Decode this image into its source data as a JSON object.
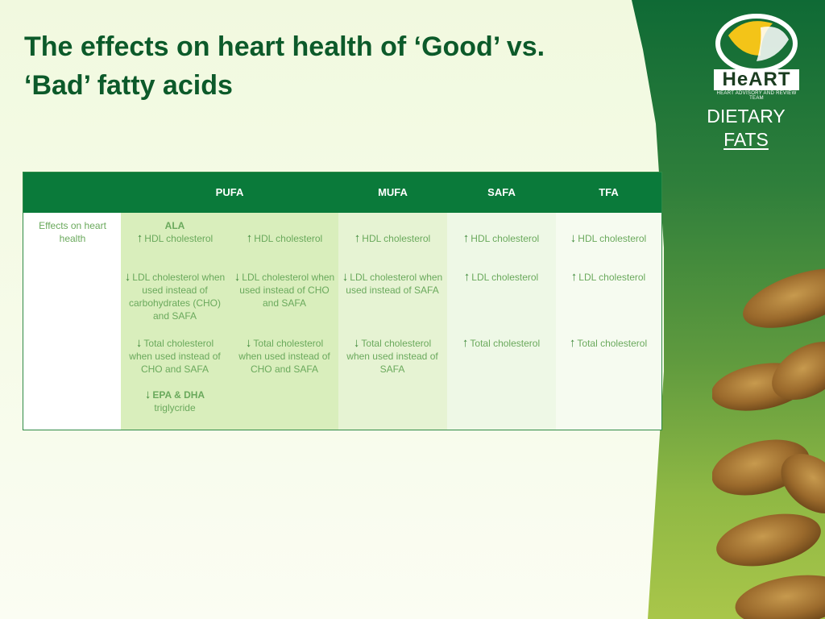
{
  "slide": {
    "title_line1": "The effects on heart health of ‘Good’ vs.",
    "title_line2": "‘Bad’ fatty acids"
  },
  "brand": {
    "logo_word": "HeART",
    "logo_sub": "HEART ADVISORY AND REVIEW TEAM",
    "tag_line1": "DIETARY",
    "tag_line2": "FATS"
  },
  "table": {
    "headers": [
      "PUFA",
      "MUFA",
      "SAFA",
      "TFA"
    ],
    "row_label": "Effects on heart health",
    "cells": {
      "pufa_a": {
        "hdl_title": "ALA",
        "hdl": "HDL cholesterol",
        "ldl": "LDL cholesterol when used instead of carbohydrates (CHO) and SAFA",
        "total": "Total cholesterol when used instead of CHO and SAFA",
        "epa": "EPA & DHA",
        "epa_sub": "triglycride"
      },
      "pufa_b": {
        "hdl": "HDL cholesterol",
        "ldl": "LDL cholesterol when used instead of CHO and SAFA",
        "total": "Total cholesterol when used instead of CHO and SAFA"
      },
      "mufa": {
        "hdl": "HDL cholesterol",
        "ldl": "LDL cholesterol when used instead of SAFA",
        "total": "Total cholesterol when used instead of SAFA"
      },
      "safa": {
        "hdl": "HDL cholesterol",
        "ldl": "LDL cholesterol",
        "total": "Total cholesterol"
      },
      "tfa": {
        "hdl": "HDL cholesterol",
        "ldl": "LDL cholesterol",
        "total": "Total cholesterol"
      }
    },
    "arrows": {
      "up": "↑",
      "down": "↓"
    }
  },
  "colors": {
    "title": "#0c5a2a",
    "header_bg": "#0a7a3a",
    "cell_text": "#6aa95c",
    "pufa_bg": "#d9eebc",
    "mufa_bg": "#e6f3d3",
    "safa_bg": "#eef8e6",
    "tfa_bg": "#f6fbf0"
  }
}
